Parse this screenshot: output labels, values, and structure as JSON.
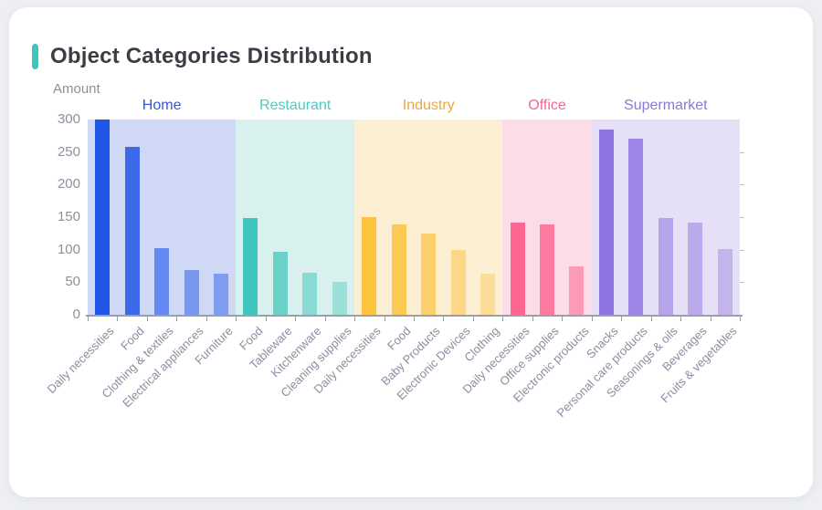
{
  "page": {
    "title": "Object Categories Distribution",
    "accent_color": "#3fc5bc",
    "card_background": "#ffffff",
    "page_background": "#edeff3"
  },
  "chart_data": {
    "type": "bar",
    "title": "Object Categories Distribution",
    "ylabel": "Amount",
    "xlabel": "",
    "ylim": [
      0,
      300
    ],
    "y_ticks": [
      0,
      50,
      100,
      150,
      200,
      250,
      300
    ],
    "grid": false,
    "legend_position": "top-inside-band-labels",
    "axis_color": "#9aa0a8",
    "groups": [
      {
        "name": "Home",
        "label_color": "#3354e8",
        "bar_color": "#2155e8",
        "band_color": "#cfd9f6",
        "bars": [
          {
            "label": "Daily necessities",
            "value": 300,
            "alpha": 1
          },
          {
            "label": "Food",
            "value": 258,
            "alpha": 0.85
          },
          {
            "label": "Clothing & textiles",
            "value": 103,
            "alpha": 0.62
          },
          {
            "label": "Electrical appliances",
            "value": 69,
            "alpha": 0.5
          },
          {
            "label": "Furniture",
            "value": 63,
            "alpha": 0.46
          }
        ]
      },
      {
        "name": "Restaurant",
        "label_color": "#4accc0",
        "bar_color": "#3fc5b9",
        "band_color": "#d9f1ee",
        "bars": [
          {
            "label": "Food",
            "value": 149,
            "alpha": 1
          },
          {
            "label": "Tableware",
            "value": 97,
            "alpha": 0.72
          },
          {
            "label": "Kitchenware",
            "value": 64,
            "alpha": 0.52
          },
          {
            "label": "Cleaning supplies",
            "value": 50,
            "alpha": 0.4
          }
        ]
      },
      {
        "name": "Industry",
        "label_color": "#eda63e",
        "bar_color": "#fdc23e",
        "band_color": "#fcefd4",
        "bars": [
          {
            "label": "Daily necessities",
            "value": 150,
            "alpha": 1
          },
          {
            "label": "Food",
            "value": 139,
            "alpha": 0.85
          },
          {
            "label": "Baby Products",
            "value": 125,
            "alpha": 0.7
          },
          {
            "label": "Electronic Devices",
            "value": 99,
            "alpha": 0.52
          },
          {
            "label": "Clothing",
            "value": 63,
            "alpha": 0.4
          }
        ]
      },
      {
        "name": "Office",
        "label_color": "#fa6590",
        "bar_color": "#fb6590",
        "band_color": "#fcdde7",
        "bars": [
          {
            "label": "Daily necessities",
            "value": 142,
            "alpha": 1
          },
          {
            "label": "Office supplies",
            "value": 139,
            "alpha": 0.82
          },
          {
            "label": "Electronic products",
            "value": 75,
            "alpha": 0.55
          }
        ]
      },
      {
        "name": "Supermarket",
        "label_color": "#8e75e0",
        "bar_color": "#8e74e2",
        "band_color": "#e6e0f7",
        "bars": [
          {
            "label": "Snacks",
            "value": 284,
            "alpha": 1
          },
          {
            "label": "Personal care products",
            "value": 271,
            "alpha": 0.85
          },
          {
            "label": "Seasonings & oils",
            "value": 148,
            "alpha": 0.56
          },
          {
            "label": "Beverages",
            "value": 141,
            "alpha": 0.5
          },
          {
            "label": "Fruits & vegetables",
            "value": 101,
            "alpha": 0.4
          }
        ]
      }
    ]
  }
}
